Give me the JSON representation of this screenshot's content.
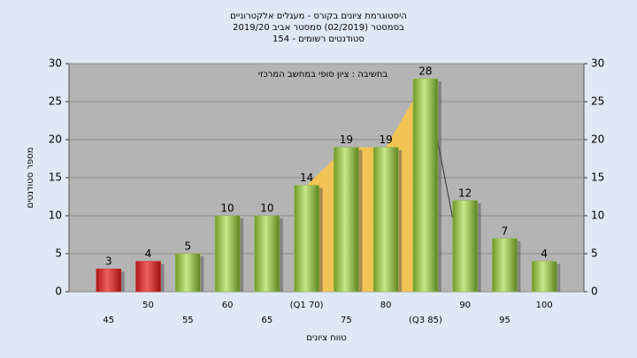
{
  "chart_data": {
    "type": "bar",
    "title": [
      "היסטוגרמת ציונים בקורס - מעגלים אלקטרוניים",
      "בסמסטר  (02/2019)  סמסטר אביב 2019/20",
      "154 - סטודנטים רשומים"
    ],
    "annotation": "בחשיבה : ציון סופי במחשב המרכזי",
    "x_label": "טווח ציונים",
    "y_label": "מספר סטודנטים",
    "categories": [
      "45",
      "50",
      "55",
      "60",
      "65",
      "(Q1 70)",
      "75",
      "80",
      "(Q3 85)",
      "90",
      "95",
      "100"
    ],
    "values": [
      3,
      4,
      5,
      10,
      10,
      14,
      19,
      19,
      28,
      12,
      7,
      4
    ],
    "colors": [
      "#d42a2a",
      "#d42a2a",
      "#8fbc3a",
      "#8fbc3a",
      "#8fbc3a",
      "#8fbc3a",
      "#8fbc3a",
      "#8fbc3a",
      "#8fbc3a",
      "#8fbc3a",
      "#8fbc3a",
      "#8fbc3a"
    ],
    "highlight_color": "#f8c44a",
    "ylim": [
      0,
      30
    ],
    "yticks": [
      0,
      5,
      10,
      15,
      20,
      25,
      30
    ],
    "grid": true
  }
}
